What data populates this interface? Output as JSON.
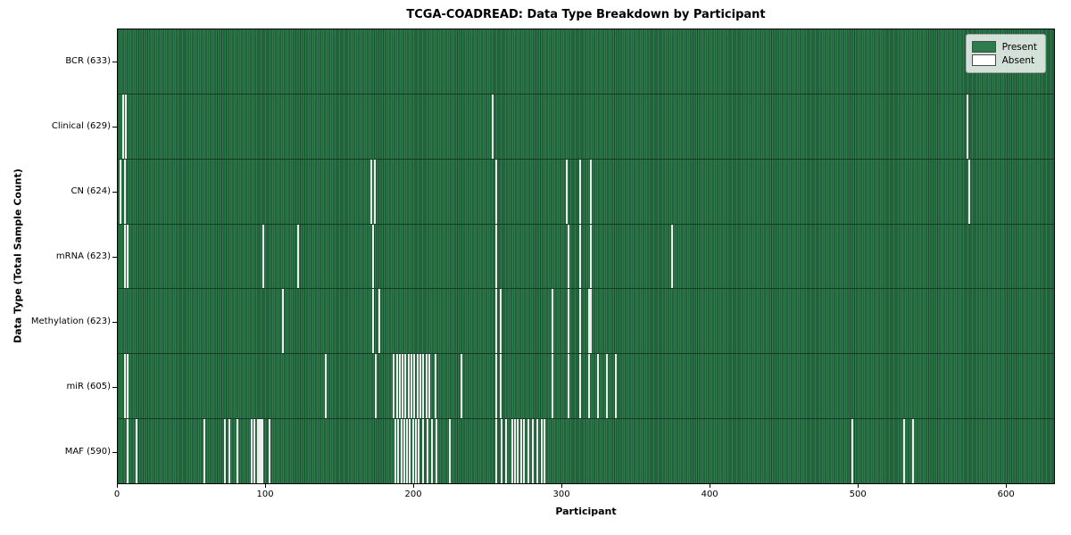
{
  "figure": {
    "title": "TCGA-COADREAD: Data Type Breakdown by Participant",
    "xlabel": "Participant",
    "ylabel": "Data Type (Total Sample Count)"
  },
  "chart_data": {
    "type": "heatmap",
    "title": "TCGA-COADREAD: Data Type Breakdown by Participant",
    "xlabel": "Participant",
    "ylabel": "Data Type (Total Sample Count)",
    "x_range": [
      0,
      633
    ],
    "x_ticks": [
      0,
      100,
      200,
      300,
      400,
      500,
      600
    ],
    "total_participants": 633,
    "grid": false,
    "legend_position": "upper right",
    "legend": [
      {
        "label": "Present",
        "color": "#2e7b4c"
      },
      {
        "label": "Absent",
        "color": "#ffffff"
      }
    ],
    "colors": {
      "present": "#2e7b4c",
      "bar_edge": "#1b4a2f",
      "absent": "#ffffff"
    },
    "rows": [
      {
        "name": "BCR",
        "label": "BCR (633)",
        "present_count": 633,
        "absent_count": 0,
        "absent_participants": []
      },
      {
        "name": "Clinical",
        "label": "Clinical (629)",
        "present_count": 629,
        "absent_count": 4,
        "absent_participants": [
          3,
          5,
          253,
          574
        ]
      },
      {
        "name": "CN",
        "label": "CN (624)",
        "present_count": 624,
        "absent_count": 9,
        "absent_participants": [
          1,
          4,
          171,
          173,
          255,
          303,
          312,
          319,
          575
        ]
      },
      {
        "name": "mRNA",
        "label": "mRNA (623)",
        "present_count": 623,
        "absent_count": 10,
        "absent_participants": [
          4,
          6,
          98,
          121,
          172,
          255,
          304,
          312,
          319,
          374
        ]
      },
      {
        "name": "Methylation",
        "label": "Methylation (623)",
        "present_count": 623,
        "absent_count": 10,
        "absent_participants": [
          111,
          172,
          176,
          255,
          258,
          293,
          304,
          312,
          318,
          319
        ]
      },
      {
        "name": "miR",
        "label": "miR (605)",
        "present_count": 605,
        "absent_count": 28,
        "absent_participants": [
          4,
          6,
          140,
          174,
          186,
          188,
          190,
          192,
          194,
          196,
          198,
          200,
          202,
          204,
          206,
          208,
          210,
          214,
          232,
          255,
          258,
          293,
          304,
          312,
          318,
          324,
          330,
          336
        ]
      },
      {
        "name": "MAF",
        "label": "MAF (590)",
        "present_count": 590,
        "absent_count": 43,
        "absent_participants": [
          6,
          12,
          58,
          72,
          75,
          80,
          90,
          92,
          94,
          95,
          96,
          97,
          102,
          187,
          189,
          191,
          193,
          195,
          197,
          199,
          201,
          203,
          206,
          209,
          212,
          215,
          224,
          255,
          259,
          262,
          266,
          268,
          270,
          272,
          274,
          277,
          280,
          283,
          286,
          288,
          496,
          531,
          537
        ]
      }
    ]
  }
}
